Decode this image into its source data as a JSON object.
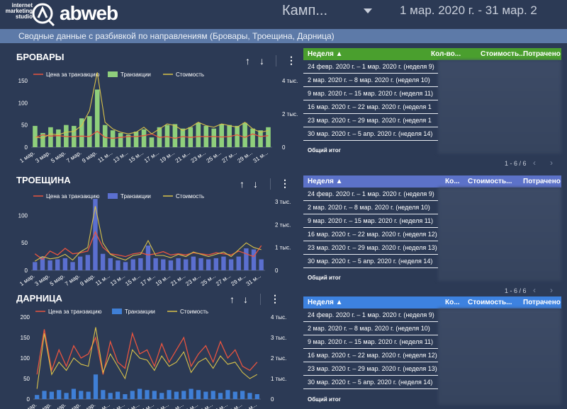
{
  "header": {
    "logo_small": [
      "internet",
      "marketing",
      "studio"
    ],
    "logo_brand": "abweb",
    "campaign_label": "Камп...",
    "date_range": "1 мар. 2020 г. - 31 мар. 2"
  },
  "banner": {
    "text": "Сводные данные с разбивкой по направлениям (Бровары, Троещина, Дарница)"
  },
  "colors": {
    "line_price": "#e8543f",
    "line_cost": "#d9c24a",
    "bar_brovary": "#8fcf7c",
    "bar_troeshchina": "#5b6fcf",
    "bar_darnitsa": "#3f7fd6",
    "table_head_green": "#4a9f2e",
    "table_head_blue": "#5c72c9",
    "table_head_bright_blue": "#3d82e0"
  },
  "icons": {
    "sort_up": "arrow-up-icon",
    "sort_down": "arrow-down-icon",
    "menu": "kebab-menu-icon"
  },
  "chart_data": [
    {
      "type": "bar",
      "title": "БРОВАРЫ",
      "legend": [
        "Цена за транзакцию",
        "Транзакции",
        "Стоимость"
      ],
      "x": [
        "1 мар.",
        "2 мар.",
        "3 мар.",
        "4 мар.",
        "5 мар.",
        "6 мар.",
        "7 мар.",
        "8 мар.",
        "9 мар.",
        "10 мар.",
        "11 мар.",
        "12 мар.",
        "13 мар.",
        "14 мар.",
        "15 мар.",
        "16 мар.",
        "17 мар.",
        "18 мар.",
        "19 мар.",
        "20 мар.",
        "21 мар.",
        "22 мар.",
        "23 мар.",
        "24 мар.",
        "25 мар.",
        "26 мар.",
        "27 мар.",
        "28 мар.",
        "29 мар.",
        "30 мар.",
        "31 мар."
      ],
      "x_tick_labels": [
        "1 мар.",
        "3 мар.",
        "5 мар.",
        "7 мар.",
        "9 мар.",
        "11 м...",
        "13 м...",
        "15 м...",
        "17 м...",
        "19 м...",
        "21 м...",
        "23 м...",
        "25 м...",
        "27 м...",
        "29 м...",
        "31 м..."
      ],
      "yleft_ticks": [
        "0",
        "50",
        "100",
        "150"
      ],
      "yleft_lim": [
        0,
        150
      ],
      "yright_ticks": [
        "0",
        "2 тыс.",
        "4 тыс."
      ],
      "yright_lim": [
        0,
        4000
      ],
      "series": [
        {
          "name": "Транзакции",
          "axis": "left",
          "values": [
            48,
            32,
            45,
            40,
            50,
            48,
            65,
            70,
            130,
            50,
            38,
            32,
            28,
            35,
            40,
            22,
            45,
            50,
            52,
            42,
            45,
            55,
            48,
            42,
            52,
            50,
            48,
            55,
            42,
            38,
            45
          ]
        },
        {
          "name": "Цена за транзакцию",
          "axis": "left",
          "values": [
            22,
            28,
            25,
            26,
            24,
            24,
            25,
            24,
            36,
            22,
            20,
            22,
            24,
            24,
            26,
            30,
            22,
            24,
            20,
            24,
            22,
            24,
            24,
            24,
            23,
            24,
            28,
            22,
            30,
            24,
            26
          ]
        },
        {
          "name": "Стоимость",
          "axis": "right",
          "values": [
            600,
            550,
            800,
            750,
            900,
            950,
            1300,
            2200,
            4500,
            1500,
            1100,
            900,
            800,
            900,
            1200,
            800,
            1100,
            1400,
            1300,
            1000,
            1200,
            1500,
            1300,
            1200,
            1400,
            1300,
            1200,
            1500,
            1100,
            900,
            1000
          ]
        }
      ]
    },
    {
      "type": "bar",
      "title": "ТРОЕЩИНА",
      "legend": [
        "Цена за транзакцию",
        "Транзакции",
        "Стоимость"
      ],
      "x": [
        "1 мар.",
        "2 мар.",
        "3 мар.",
        "4 мар.",
        "5 мар.",
        "6 мар.",
        "7 мар.",
        "8 мар.",
        "9 мар.",
        "10 мар.",
        "11 мар.",
        "12 мар.",
        "13 мар.",
        "14 мар.",
        "15 мар.",
        "16 мар.",
        "17 мар.",
        "18 мар.",
        "19 мар.",
        "20 мар.",
        "21 мар.",
        "22 мар.",
        "23 мар.",
        "24 мар.",
        "25 мар.",
        "26 мар.",
        "27 мар.",
        "28 мар.",
        "29 мар.",
        "30 мар.",
        "31 мар."
      ],
      "x_tick_labels": [
        "1 мар.",
        "3 мар.",
        "5 мар.",
        "7 мар.",
        "9 мар.",
        "11 м...",
        "13 м...",
        "15 м...",
        "17 м...",
        "19 м...",
        "21 м...",
        "23 м...",
        "25 м...",
        "27 м...",
        "29 м...",
        "31 м..."
      ],
      "yleft_ticks": [
        "0",
        "50",
        "100"
      ],
      "yleft_lim": [
        0,
        125
      ],
      "yright_ticks": [
        "0",
        "1 тыс.",
        "2 тыс.",
        "3 тыс."
      ],
      "yright_lim": [
        0,
        3000
      ],
      "series": [
        {
          "name": "Транзакции",
          "axis": "left",
          "values": [
            15,
            25,
            18,
            20,
            22,
            15,
            25,
            28,
            130,
            30,
            22,
            18,
            15,
            20,
            22,
            45,
            22,
            20,
            18,
            22,
            20,
            25,
            22,
            20,
            22,
            25,
            20,
            25,
            40,
            38,
            20
          ]
        },
        {
          "name": "Цена за транзакцию",
          "axis": "left",
          "values": [
            30,
            20,
            35,
            28,
            40,
            30,
            32,
            35,
            70,
            42,
            30,
            28,
            25,
            30,
            32,
            28,
            30,
            34,
            28,
            30,
            28,
            32,
            30,
            28,
            32,
            30,
            28,
            35,
            30,
            25,
            45
          ]
        },
        {
          "name": "Стоимость",
          "axis": "right",
          "values": [
            400,
            600,
            500,
            550,
            700,
            450,
            800,
            1000,
            2800,
            1200,
            700,
            550,
            450,
            650,
            700,
            1300,
            650,
            650,
            550,
            700,
            600,
            800,
            700,
            600,
            700,
            800,
            600,
            900,
            1200,
            1000,
            900
          ]
        }
      ]
    },
    {
      "type": "bar",
      "title": "ДАРНИЦА",
      "legend": [
        "Цена за транзакцию",
        "Транзакции",
        "Стоимость"
      ],
      "x": [
        "1 мар.",
        "2 мар.",
        "3 мар.",
        "4 мар.",
        "5 мар.",
        "6 мар.",
        "7 мар.",
        "8 мар.",
        "9 мар.",
        "10 мар.",
        "11 мар.",
        "12 мар.",
        "13 мар.",
        "14 мар.",
        "15 мар.",
        "16 мар.",
        "17 мар.",
        "18 мар.",
        "19 мар.",
        "20 мар.",
        "21 мар.",
        "22 мар.",
        "23 мар.",
        "24 мар.",
        "25 мар.",
        "26 мар.",
        "27 мар.",
        "28 мар.",
        "29 мар.",
        "30 мар.",
        "31 мар."
      ],
      "x_tick_labels": [
        "1 мар.",
        "3 мар.",
        "5 мар.",
        "7 мар.",
        "9 мар.",
        "11 м...",
        "13 м...",
        "15 м...",
        "17 м...",
        "19 м...",
        "21 м...",
        "23 м...",
        "25 м...",
        "27 м...",
        "29 м...",
        "31 м..."
      ],
      "yleft_ticks": [
        "0",
        "50",
        "100",
        "150",
        "200"
      ],
      "yleft_lim": [
        0,
        200
      ],
      "yright_ticks": [
        "0",
        "1 тыс.",
        "2 тыс.",
        "3 тыс.",
        "4 тыс."
      ],
      "yright_lim": [
        0,
        4000
      ],
      "series": [
        {
          "name": "Транзакции",
          "axis": "left",
          "values": [
            10,
            20,
            18,
            22,
            15,
            25,
            20,
            18,
            60,
            22,
            15,
            18,
            12,
            20,
            25,
            22,
            20,
            15,
            22,
            18,
            20,
            25,
            22,
            18,
            20,
            15,
            22,
            18,
            20,
            15,
            12
          ]
        },
        {
          "name": "Цена за транзакцию",
          "axis": "left",
          "values": [
            60,
            170,
            70,
            120,
            80,
            130,
            100,
            110,
            150,
            60,
            140,
            90,
            75,
            160,
            110,
            120,
            80,
            135,
            90,
            120,
            150,
            80,
            110,
            130,
            90,
            140,
            100,
            120,
            80,
            70,
            90
          ]
        },
        {
          "name": "Стоимость",
          "axis": "right",
          "values": [
            500,
            3200,
            1200,
            1800,
            1400,
            2000,
            1700,
            1600,
            3500,
            1300,
            2200,
            1600,
            1000,
            2400,
            2000,
            1900,
            1400,
            2100,
            1600,
            1800,
            2300,
            1300,
            1800,
            2000,
            1500,
            2100,
            1700,
            1800,
            1300,
            1000,
            1200
          ]
        }
      ]
    }
  ],
  "tables": [
    {
      "columns": [
        "Неделя ▲",
        "Кол-во...",
        "Стоимость...",
        "Потрачено"
      ],
      "rows": [
        "24 февр. 2020 г. – 1 мар. 2020 г. (неделя 9)",
        "2 мар. 2020 г. – 8 мар. 2020 г. (неделя 10)",
        "9 мар. 2020 г. – 15 мар. 2020 г. (неделя 11)",
        "16 мар. 2020 г. – 22 мар. 2020 г. (неделя 1",
        "23 мар. 2020 г. – 29 мар. 2020 г. (неделя 1",
        "30 мар. 2020 г. – 5 апр. 2020 г. (неделя 14)"
      ],
      "total": "Общий итог",
      "pager": "1 - 6 / 6"
    },
    {
      "columns": [
        "Неделя ▲",
        "Ко...",
        "Стоимость...",
        "Потрачено"
      ],
      "rows": [
        "24 февр. 2020 г. – 1 мар. 2020 г. (неделя 9)",
        "2 мар. 2020 г. – 8 мар. 2020 г. (неделя 10)",
        "9 мар. 2020 г. – 15 мар. 2020 г. (неделя 11)",
        "16 мар. 2020 г. – 22 мар. 2020 г. (неделя 12)",
        "23 мар. 2020 г. – 29 мар. 2020 г. (неделя 13)",
        "30 мар. 2020 г. – 5 апр. 2020 г. (неделя 14)"
      ],
      "total": "Общий итог",
      "pager": "1 - 6 / 6"
    },
    {
      "columns": [
        "Неделя ▲",
        "Ко...",
        "Стоимость...",
        "Потрачено"
      ],
      "rows": [
        "24 февр. 2020 г. – 1 мар. 2020 г. (неделя 9)",
        "2 мар. 2020 г. – 8 мар. 2020 г. (неделя 10)",
        "9 мар. 2020 г. – 15 мар. 2020 г. (неделя 11)",
        "16 мар. 2020 г. – 22 мар. 2020 г. (неделя 12)",
        "23 мар. 2020 г. – 29 мар. 2020 г. (неделя 13)",
        "30 мар. 2020 г. – 5 апр. 2020 г. (неделя 14)"
      ],
      "total": "Общий итог"
    }
  ]
}
